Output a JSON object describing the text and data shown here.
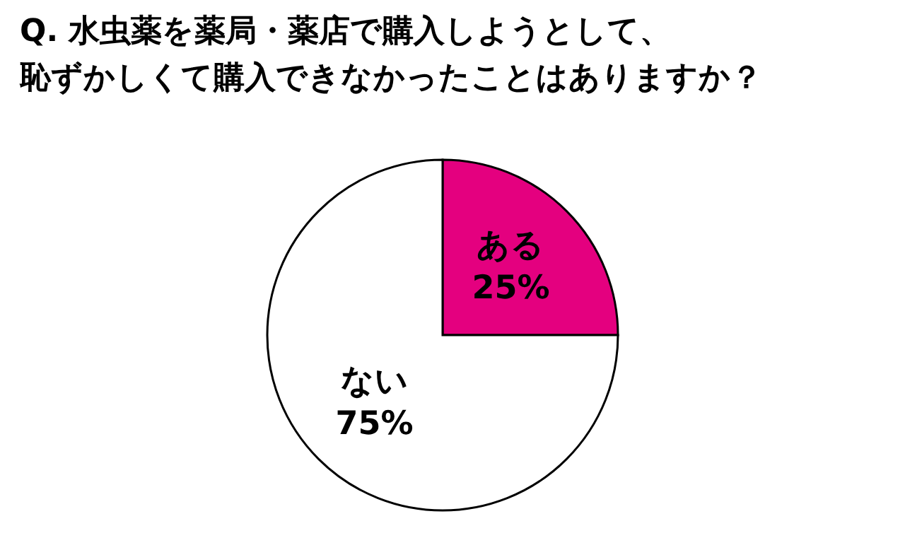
{
  "chart_data": {
    "type": "pie",
    "title": "Q. 水虫薬を薬局・薬店で購入しようとして、恥ずかしくて購入できなかったことはありますか？",
    "categories": [
      "ある",
      "ない"
    ],
    "values": [
      25,
      75
    ],
    "value_labels": [
      "25%",
      "75%"
    ],
    "colors": [
      "#e4007f",
      "#ffffff"
    ],
    "legend": false
  }
}
